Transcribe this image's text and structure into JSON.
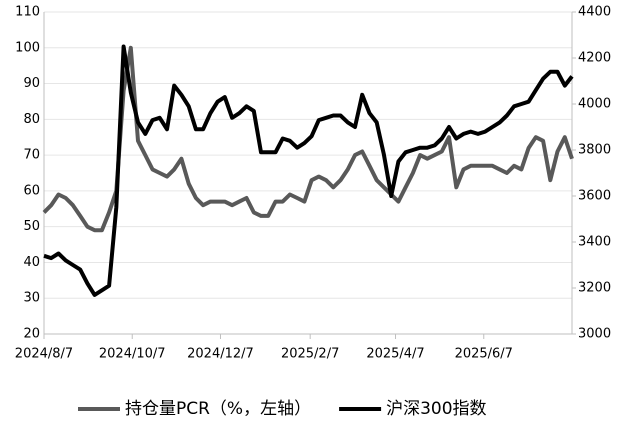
{
  "chart_data": {
    "type": "line",
    "x": [
      "2024/8/7",
      "2024/8/12",
      "2024/8/17",
      "2024/8/22",
      "2024/8/27",
      "2024/9/1",
      "2024/9/6",
      "2024/9/11",
      "2024/9/16",
      "2024/9/21",
      "2024/9/26",
      "2024/10/1",
      "2024/10/6",
      "2024/10/11",
      "2024/10/16",
      "2024/10/21",
      "2024/10/26",
      "2024/10/31",
      "2024/11/5",
      "2024/11/10",
      "2024/11/15",
      "2024/11/20",
      "2024/11/25",
      "2024/11/30",
      "2024/12/5",
      "2024/12/10",
      "2024/12/15",
      "2024/12/20",
      "2024/12/25",
      "2024/12/30",
      "2025/1/4",
      "2025/1/9",
      "2025/1/14",
      "2025/1/19",
      "2025/1/24",
      "2025/1/29",
      "2025/2/3",
      "2025/2/8",
      "2025/2/13",
      "2025/2/18",
      "2025/2/23",
      "2025/2/28",
      "2025/3/5",
      "2025/3/10",
      "2025/3/15",
      "2025/3/20",
      "2025/3/25",
      "2025/3/30",
      "2025/4/4",
      "2025/4/9",
      "2025/4/14",
      "2025/4/19",
      "2025/4/24",
      "2025/4/29",
      "2025/5/4",
      "2025/5/9",
      "2025/5/14",
      "2025/5/19",
      "2025/5/24",
      "2025/5/29",
      "2025/6/3",
      "2025/6/8",
      "2025/6/13",
      "2025/6/18",
      "2025/6/23",
      "2025/6/28",
      "2025/7/3",
      "2025/7/8",
      "2025/7/13",
      "2025/7/18",
      "2025/7/23",
      "2025/7/28",
      "2025/8/2",
      "2025/8/7"
    ],
    "series": [
      {
        "name": "持仓量PCR（%，左轴）",
        "color": "#595959",
        "axis": "y",
        "values": [
          54,
          56,
          59,
          58,
          56,
          53,
          50,
          49,
          49,
          54,
          60,
          88,
          100,
          74,
          70,
          66,
          65,
          64,
          66,
          69,
          62,
          58,
          56,
          57,
          57,
          57,
          56,
          57,
          58,
          54,
          53,
          53,
          57,
          57,
          59,
          58,
          57,
          63,
          64,
          63,
          61,
          63,
          66,
          70,
          71,
          67,
          63,
          61,
          59,
          57,
          61,
          65,
          70,
          69,
          70,
          71,
          75,
          61,
          66,
          67,
          67,
          67,
          67,
          66,
          65,
          67,
          66,
          72,
          75,
          74,
          63,
          71,
          75,
          69
        ]
      },
      {
        "name": "沪深300指数",
        "color": "#000000",
        "axis": "y2",
        "values": [
          3340,
          3330,
          3350,
          3320,
          3300,
          3280,
          3220,
          3170,
          3190,
          3210,
          3550,
          4250,
          4050,
          3920,
          3870,
          3930,
          3940,
          3890,
          4080,
          4040,
          3990,
          3890,
          3890,
          3960,
          4010,
          4030,
          3940,
          3960,
          3990,
          3970,
          3790,
          3790,
          3790,
          3850,
          3840,
          3810,
          3830,
          3860,
          3930,
          3940,
          3950,
          3950,
          3920,
          3900,
          4040,
          3960,
          3920,
          3780,
          3600,
          3750,
          3790,
          3800,
          3810,
          3810,
          3820,
          3850,
          3900,
          3850,
          3870,
          3880,
          3870,
          3880,
          3900,
          3920,
          3950,
          3990,
          4000,
          4010,
          4060,
          4110,
          4140,
          4140,
          4080,
          4120
        ]
      }
    ],
    "xlim": [
      "2024/8/7",
      "2025/8/7"
    ],
    "xticks": [
      "2024/8/7",
      "2024/10/7",
      "2024/12/7",
      "2025/2/7",
      "2025/4/7",
      "2025/6/7"
    ],
    "ylim": [
      20,
      110
    ],
    "yticks": [
      20,
      30,
      40,
      50,
      60,
      70,
      80,
      90,
      100,
      110
    ],
    "y2lim": [
      3000,
      4400
    ],
    "y2ticks": [
      3000,
      3200,
      3400,
      3600,
      3800,
      4000,
      4200,
      4400
    ],
    "grid": true,
    "legend": "bottom"
  }
}
